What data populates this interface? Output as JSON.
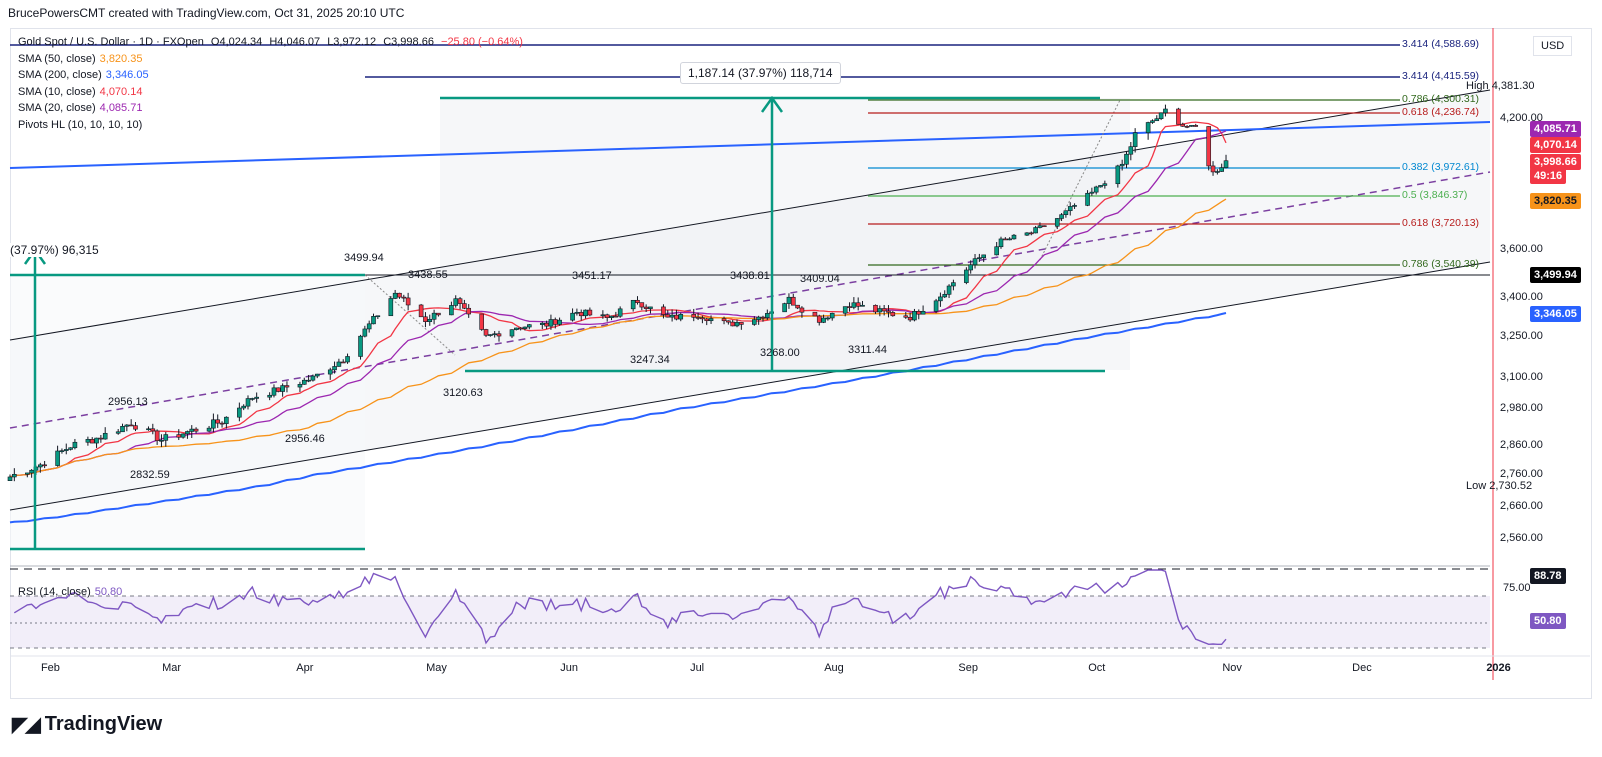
{
  "creator": "BrucePowersCMT created with TradingView.com, Oct 31, 2025 20:10 UTC",
  "currency": "USD",
  "brand": "TradingView",
  "header": {
    "symbol": "Gold Spot / U.S. Dollar · 1D · FXOpen",
    "open": "O4,024.34",
    "high": "H4,046.07",
    "low": "L3,972.12",
    "close": "C3,998.66",
    "change": "−25.80 (−0.64%)"
  },
  "indicators": [
    {
      "label": "SMA (50, close)",
      "value": "3,820.35",
      "color": "#f7931a"
    },
    {
      "label": "SMA (200, close)",
      "value": "3,346.05",
      "color": "#2962ff"
    },
    {
      "label": "SMA (10, close)",
      "value": "4,070.14",
      "color": "#f23645"
    },
    {
      "label": "SMA (20, close)",
      "value": "4,085.71",
      "color": "#9c27b0"
    },
    {
      "label": "Pivots HL (10, 10, 10, 10)",
      "value": "",
      "color": "#131722"
    }
  ],
  "rsi": {
    "label": "RSI (14, close)",
    "value": "50.80",
    "color": "#7e57c2",
    "upper": 75,
    "lower": 25,
    "badge_top": "88.78",
    "badge_last": "50.80",
    "ticks": [
      "75.00"
    ]
  },
  "price_scale": {
    "ticks": [
      "4,200.00",
      "3,600.00",
      "3,400.00",
      "3,250.00",
      "3,100.00",
      "2,980.00",
      "2,860.00",
      "2,760.00",
      "2,660.00",
      "2,560.00"
    ],
    "tags": [
      {
        "text": "4,085.71",
        "bg": "#9c27b0",
        "fg": "#ffffff"
      },
      {
        "text": "4,070.14",
        "bg": "#f23645",
        "fg": "#ffffff"
      },
      {
        "text": "3,998.66",
        "bg": "#f23645",
        "fg": "#ffffff"
      },
      {
        "text": "49:16",
        "bg": "#f23645",
        "fg": "#ffffff"
      },
      {
        "text": "3,820.35",
        "bg": "#f7931a",
        "fg": "#131722"
      },
      {
        "text": "3,499.94",
        "bg": "#000000",
        "fg": "#ffffff"
      },
      {
        "text": "3,346.05",
        "bg": "#2962ff",
        "fg": "#ffffff"
      }
    ],
    "high_label": "High",
    "high_value": "4,381.30",
    "low_label": "Low",
    "low_value": "2,730.52"
  },
  "time_axis": [
    "Feb",
    "Mar",
    "Apr",
    "May",
    "Jun",
    "Jul",
    "Aug",
    "Sep",
    "Oct",
    "Nov",
    "Dec",
    "2026"
  ],
  "fib_levels": [
    {
      "label": "3.414 (4,588.69)",
      "price": 4588.69,
      "color": "#1a237e"
    },
    {
      "label": "3.414 (4,415.59)",
      "price": 4415.59,
      "color": "#1a237e"
    },
    {
      "label": "0.786 (4,300.31)",
      "price": 4300.31,
      "color": "#33691e"
    },
    {
      "label": "0.618 (4,236.74)",
      "price": 4236.74,
      "color": "#b71c1c"
    },
    {
      "label": "0.382 (3,972.61)",
      "price": 3972.61,
      "color": "#0288d1"
    },
    {
      "label": "0.5 (3,846.37)",
      "price": 3846.37,
      "color": "#4caf50"
    },
    {
      "label": "0.618 (3,720.13)",
      "price": 3720.13,
      "color": "#b71c1c"
    },
    {
      "label": "0.786 (3,540.39)",
      "price": 3540.39,
      "color": "#33691e"
    }
  ],
  "measure_labels": {
    "main": "1,187.14 (37.97%) 118,714",
    "left": "(37.97%) 96,315"
  },
  "pivot_labels": [
    "3499.94",
    "3438.55",
    "3451.17",
    "3438.81",
    "3409.04",
    "2956.13",
    "3247.34",
    "3268.00",
    "3311.44",
    "3120.63",
    "2956.46",
    "2832.59"
  ],
  "chart_data": {
    "type": "candlestick",
    "title": "Gold Spot / U.S. Dollar · 1D · FXOpen",
    "ylabel": "USD",
    "ylim": [
      2500,
      4600
    ],
    "x_start": "2025-01-23",
    "x_end": "2025-12-31",
    "closes": [
      {
        "date": "2025-01-23",
        "close": 2755
      },
      {
        "date": "2025-01-30",
        "close": 2795
      },
      {
        "date": "2025-02-06",
        "close": 2860
      },
      {
        "date": "2025-02-13",
        "close": 2890
      },
      {
        "date": "2025-02-20",
        "close": 2935
      },
      {
        "date": "2025-02-27",
        "close": 2880
      },
      {
        "date": "2025-03-06",
        "close": 2910
      },
      {
        "date": "2025-03-13",
        "close": 2940
      },
      {
        "date": "2025-03-20",
        "close": 3025
      },
      {
        "date": "2025-03-27",
        "close": 3060
      },
      {
        "date": "2025-04-03",
        "close": 3100
      },
      {
        "date": "2025-04-10",
        "close": 3170
      },
      {
        "date": "2025-04-17",
        "close": 3320
      },
      {
        "date": "2025-04-22",
        "close": 3420
      },
      {
        "date": "2025-04-29",
        "close": 3318
      },
      {
        "date": "2025-05-06",
        "close": 3390
      },
      {
        "date": "2025-05-13",
        "close": 3250
      },
      {
        "date": "2025-05-20",
        "close": 3290
      },
      {
        "date": "2025-05-27",
        "close": 3300
      },
      {
        "date": "2025-06-03",
        "close": 3350
      },
      {
        "date": "2025-06-10",
        "close": 3325
      },
      {
        "date": "2025-06-17",
        "close": 3390
      },
      {
        "date": "2025-06-24",
        "close": 3325
      },
      {
        "date": "2025-07-01",
        "close": 3340
      },
      {
        "date": "2025-07-08",
        "close": 3300
      },
      {
        "date": "2025-07-15",
        "close": 3330
      },
      {
        "date": "2025-07-22",
        "close": 3395
      },
      {
        "date": "2025-07-29",
        "close": 3320
      },
      {
        "date": "2025-08-05",
        "close": 3380
      },
      {
        "date": "2025-08-12",
        "close": 3350
      },
      {
        "date": "2025-08-19",
        "close": 3330
      },
      {
        "date": "2025-08-26",
        "close": 3410
      },
      {
        "date": "2025-09-02",
        "close": 3540
      },
      {
        "date": "2025-09-09",
        "close": 3640
      },
      {
        "date": "2025-09-16",
        "close": 3680
      },
      {
        "date": "2025-09-23",
        "close": 3755
      },
      {
        "date": "2025-09-30",
        "close": 3860
      },
      {
        "date": "2025-10-07",
        "close": 3985
      },
      {
        "date": "2025-10-14",
        "close": 4180
      },
      {
        "date": "2025-10-17",
        "close": 4250
      },
      {
        "date": "2025-10-21",
        "close": 4120
      },
      {
        "date": "2025-10-24",
        "close": 4110
      },
      {
        "date": "2025-10-28",
        "close": 3950
      },
      {
        "date": "2025-10-31",
        "close": 3998.66
      }
    ],
    "series": [
      {
        "name": "SMA (50, close)",
        "last": 3820.35
      },
      {
        "name": "SMA (200, close)",
        "last": 3346.05
      },
      {
        "name": "SMA (10, close)",
        "last": 4070.14
      },
      {
        "name": "SMA (20, close)",
        "last": 4085.71
      }
    ]
  }
}
